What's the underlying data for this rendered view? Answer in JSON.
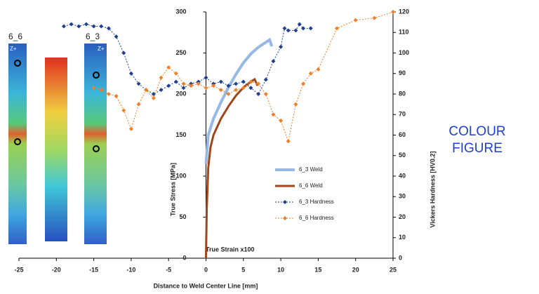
{
  "chart_data": {
    "type": "line",
    "xlabel": "Distance to Weld Center Line [mm]",
    "ylabel": "True Stress [MPa]",
    "y2label": "Vickers Hardness [HV0.2]",
    "annotation": "True Strain x100",
    "xlim": [
      -25,
      25
    ],
    "xticks": [
      -25,
      -20,
      -15,
      -10,
      -5,
      0,
      5,
      10,
      15,
      20,
      25
    ],
    "ylim": [
      0,
      300
    ],
    "yticks": [
      0,
      50,
      100,
      150,
      200,
      250,
      300
    ],
    "y2lim": [
      0,
      120
    ],
    "y2ticks": [
      0,
      10,
      20,
      30,
      40,
      50,
      60,
      70,
      80,
      90,
      100,
      110,
      120
    ],
    "legend": "lower-right",
    "series": [
      {
        "name": "6_3 Weld",
        "color": "#95b8e4",
        "width": 4,
        "marker": "none",
        "dashed": false,
        "x": [
          0,
          0.3,
          1,
          2,
          3,
          4,
          5,
          6,
          7,
          8,
          8.5,
          8.8
        ],
        "values": [
          115,
          150,
          170,
          190,
          208,
          224,
          238,
          249,
          257,
          263,
          266,
          258
        ]
      },
      {
        "name": "6_6 Weld",
        "color": "#a0461c",
        "width": 3,
        "marker": "none",
        "dashed": false,
        "x": [
          0,
          0.1,
          0.3,
          0.6,
          1,
          2,
          3,
          4,
          5,
          6,
          6.5,
          6.9
        ],
        "values": [
          0,
          60,
          110,
          135,
          150,
          170,
          185,
          198,
          208,
          215,
          218,
          210
        ]
      },
      {
        "name": "6_3 Hardness",
        "color": "#1f3f8f",
        "width": 1,
        "marker": "diamond",
        "dashed": true,
        "axis": "y2",
        "x": [
          -19,
          -18,
          -17,
          -16,
          -15,
          -14,
          -13,
          -12,
          -11,
          -10,
          -9,
          -8,
          -7,
          -6,
          -5,
          -4,
          -3,
          -2,
          -1,
          0,
          1,
          2,
          3,
          4,
          5,
          6,
          7,
          8,
          9,
          10,
          10.5,
          11,
          12,
          12.5,
          13,
          14
        ],
        "values": [
          113,
          114,
          113,
          114,
          113,
          113,
          112,
          108,
          100,
          90,
          85,
          82,
          80,
          82,
          84,
          86,
          83,
          85,
          86,
          88,
          85,
          86,
          84,
          85,
          86,
          83,
          80,
          87,
          96,
          103,
          112,
          111,
          111,
          114,
          112,
          112
        ]
      },
      {
        "name": "6_6 Hardness",
        "color": "#f07f2a",
        "width": 1,
        "marker": "diamond",
        "dashed": true,
        "axis": "y2",
        "x": [
          -15,
          -14,
          -13,
          -12,
          -11,
          -10,
          -9,
          -8,
          -7,
          -6,
          -5,
          -4,
          -3,
          -2,
          -1,
          0,
          1,
          2,
          3,
          4,
          5,
          6,
          7,
          8,
          9,
          10,
          11,
          12,
          13,
          14,
          15,
          17.5,
          20,
          22.5,
          25
        ],
        "values": [
          83,
          82,
          80,
          79,
          72,
          63,
          75,
          82,
          78,
          88,
          93,
          90,
          85,
          84,
          85,
          83,
          84,
          82,
          80,
          82,
          83,
          86,
          85,
          80,
          70,
          67,
          57,
          75,
          85,
          90,
          92,
          112,
          116,
          117,
          120
        ]
      }
    ]
  },
  "images": {
    "labels": [
      "6_6",
      "6_3"
    ],
    "axis_tags": [
      "Z+",
      "Z+"
    ]
  },
  "side_label": [
    "COLOUR",
    "FIGURE"
  ]
}
